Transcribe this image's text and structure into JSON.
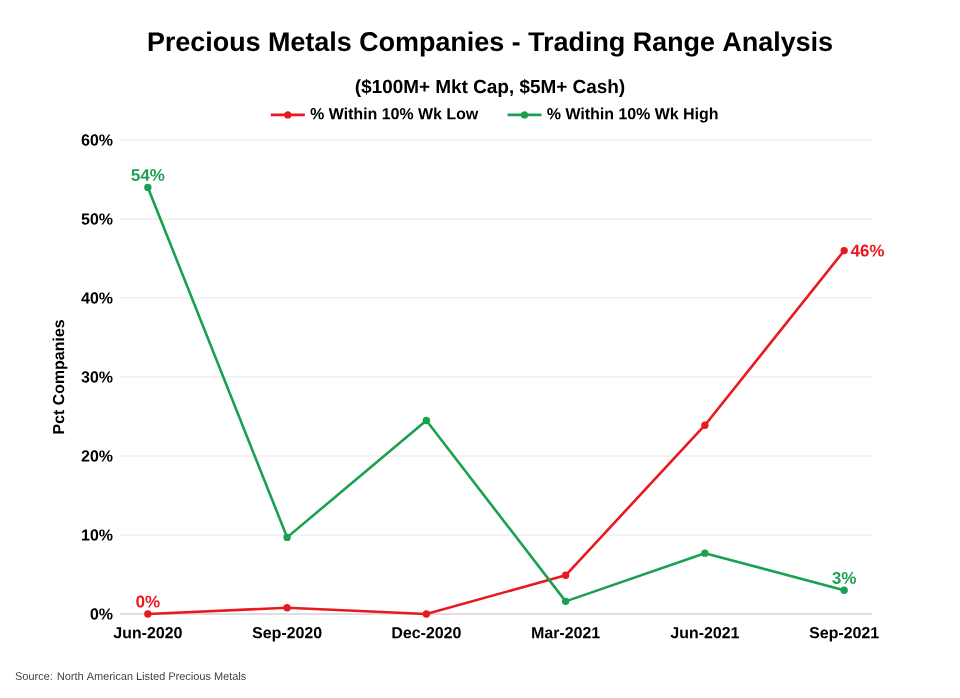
{
  "chart_data": {
    "type": "line",
    "title": "Precious Metals Companies - Trading Range Analysis",
    "subtitle": "($100M+ Mkt Cap, $5M+ Cash)",
    "ylabel": "Pct Companies",
    "categories": [
      "Jun-2020",
      "Sep-2020",
      "Dec-2020",
      "Mar-2021",
      "Jun-2021",
      "Sep-2021"
    ],
    "series": [
      {
        "name": "% Within 10% Wk Low",
        "color": "#e8191f",
        "values": [
          0,
          0.8,
          0,
          4.9,
          23.9,
          46
        ],
        "value_labels": [
          "0%",
          null,
          null,
          null,
          null,
          "46%"
        ]
      },
      {
        "name": "% Within 10% Wk High",
        "color": "#1aa150",
        "values": [
          54,
          9.7,
          24.5,
          1.6,
          7.7,
          3
        ],
        "value_labels": [
          "54%",
          null,
          null,
          null,
          null,
          "3%"
        ]
      }
    ],
    "ylim": [
      0,
      60
    ],
    "yticks": [
      {
        "value": 0,
        "label": "0%"
      },
      {
        "value": 10,
        "label": "10%"
      },
      {
        "value": 20,
        "label": "20%"
      },
      {
        "value": 30,
        "label": "30%"
      },
      {
        "value": 40,
        "label": "40%"
      },
      {
        "value": 50,
        "label": "50%"
      },
      {
        "value": 60,
        "label": "60%"
      }
    ],
    "grid": "y",
    "legend": "top",
    "marker": "circle",
    "line_style": "solid",
    "annotations": [
      "Source: North American Listed Precious Metals"
    ]
  }
}
